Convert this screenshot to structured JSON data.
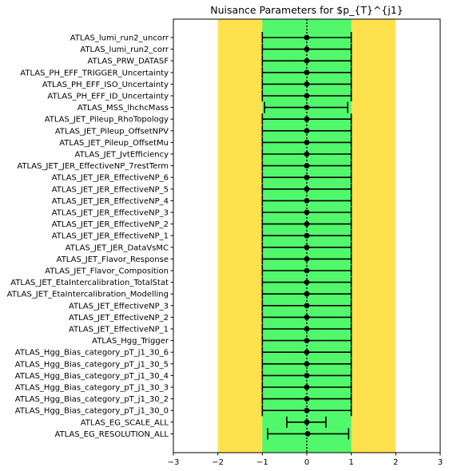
{
  "chart_data": {
    "type": "scatter",
    "title": "Nuisance Parameters for $p_{T}^{j1}",
    "xlim": [
      -3,
      3
    ],
    "xticks": [
      -3,
      -2,
      -1,
      0,
      1,
      2,
      3
    ],
    "bands": [
      {
        "from": -2,
        "to": 2,
        "color": "#ffe14d"
      },
      {
        "from": -1,
        "to": 1,
        "color": "#52f86b"
      }
    ],
    "reference_line": 0,
    "parameters": [
      {
        "name": "ATLAS_lumi_run2_uncorr",
        "value": 0,
        "err_low": -1,
        "err_high": 1
      },
      {
        "name": "ATLAS_lumi_run2_corr",
        "value": 0,
        "err_low": -1,
        "err_high": 1
      },
      {
        "name": "ATLAS_PRW_DATASF",
        "value": 0,
        "err_low": -1,
        "err_high": 1
      },
      {
        "name": "ATLAS_PH_EFF_TRIGGER_Uncertainty",
        "value": 0,
        "err_low": -1,
        "err_high": 1
      },
      {
        "name": "ATLAS_PH_EFF_ISO_Uncertainty",
        "value": 0,
        "err_low": -1,
        "err_high": 1
      },
      {
        "name": "ATLAS_PH_EFF_ID_Uncertainty",
        "value": 0,
        "err_low": -1,
        "err_high": 1
      },
      {
        "name": "ATLAS_MSS_lhchcMass",
        "value": 0,
        "err_low": -0.95,
        "err_high": 0.92
      },
      {
        "name": "ATLAS_JET_Pileup_RhoTopology",
        "value": 0,
        "err_low": -1,
        "err_high": 1
      },
      {
        "name": "ATLAS_JET_Pileup_OffsetNPV",
        "value": 0,
        "err_low": -1,
        "err_high": 1
      },
      {
        "name": "ATLAS_JET_Pileup_OffsetMu",
        "value": 0,
        "err_low": -1,
        "err_high": 1
      },
      {
        "name": "ATLAS_JET_JvtEfficiency",
        "value": 0,
        "err_low": -1,
        "err_high": 1
      },
      {
        "name": "ATLAS_JET_JER_EffectiveNP_7restTerm",
        "value": 0,
        "err_low": -1,
        "err_high": 1
      },
      {
        "name": "ATLAS_JET_JER_EffectiveNP_6",
        "value": 0,
        "err_low": -1,
        "err_high": 1
      },
      {
        "name": "ATLAS_JET_JER_EffectiveNP_5",
        "value": 0,
        "err_low": -1,
        "err_high": 1
      },
      {
        "name": "ATLAS_JET_JER_EffectiveNP_4",
        "value": 0,
        "err_low": -1,
        "err_high": 1
      },
      {
        "name": "ATLAS_JET_JER_EffectiveNP_3",
        "value": 0,
        "err_low": -1,
        "err_high": 1
      },
      {
        "name": "ATLAS_JET_JER_EffectiveNP_2",
        "value": 0,
        "err_low": -1,
        "err_high": 1
      },
      {
        "name": "ATLAS_JET_JER_EffectiveNP_1",
        "value": 0,
        "err_low": -1,
        "err_high": 1
      },
      {
        "name": "ATLAS_JET_JER_DataVsMC",
        "value": 0,
        "err_low": -1,
        "err_high": 1
      },
      {
        "name": "ATLAS_JET_Flavor_Response",
        "value": 0,
        "err_low": -1,
        "err_high": 1
      },
      {
        "name": "ATLAS_JET_Flavor_Composition",
        "value": 0,
        "err_low": -1,
        "err_high": 1
      },
      {
        "name": "ATLAS_JET_EtaIntercalibration_TotalStat",
        "value": 0,
        "err_low": -1,
        "err_high": 1
      },
      {
        "name": "ATLAS_JET_EtaIntercalibration_Modelling",
        "value": 0,
        "err_low": -1,
        "err_high": 1
      },
      {
        "name": "ATLAS_JET_EffectiveNP_3",
        "value": 0,
        "err_low": -1,
        "err_high": 1
      },
      {
        "name": "ATLAS_JET_EffectiveNP_2",
        "value": 0,
        "err_low": -1,
        "err_high": 1
      },
      {
        "name": "ATLAS_JET_EffectiveNP_1",
        "value": 0,
        "err_low": -1,
        "err_high": 1
      },
      {
        "name": "ATLAS_Hgg_Trigger",
        "value": 0,
        "err_low": -1,
        "err_high": 1
      },
      {
        "name": "ATLAS_Hgg_Bias_category_pT_j1_30_6",
        "value": 0,
        "err_low": -1,
        "err_high": 1
      },
      {
        "name": "ATLAS_Hgg_Bias_category_pT_j1_30_5",
        "value": 0,
        "err_low": -1,
        "err_high": 1
      },
      {
        "name": "ATLAS_Hgg_Bias_category_pT_j1_30_4",
        "value": 0,
        "err_low": -1,
        "err_high": 1
      },
      {
        "name": "ATLAS_Hgg_Bias_category_pT_j1_30_3",
        "value": 0,
        "err_low": -1,
        "err_high": 1
      },
      {
        "name": "ATLAS_Hgg_Bias_category_pT_j1_30_2",
        "value": 0,
        "err_low": -1,
        "err_high": 1
      },
      {
        "name": "ATLAS_Hgg_Bias_category_pT_j1_30_0",
        "value": 0,
        "err_low": -1,
        "err_high": 1
      },
      {
        "name": "ATLAS_EG_SCALE_ALL",
        "value": 0,
        "err_low": -0.45,
        "err_high": 0.43
      },
      {
        "name": "ATLAS_EG_RESOLUTION_ALL",
        "value": 0.02,
        "err_low": -0.9,
        "err_high": 0.92
      }
    ]
  }
}
